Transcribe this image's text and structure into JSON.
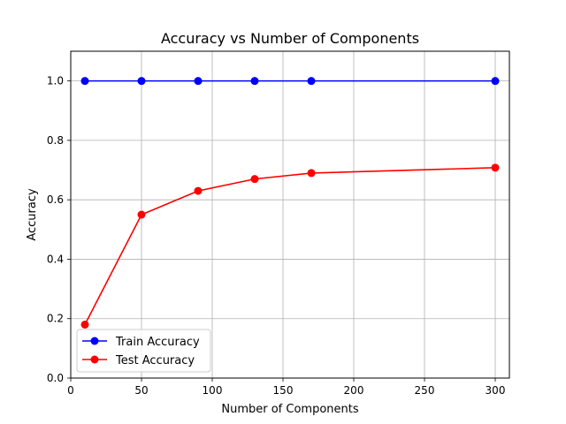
{
  "chart_data": {
    "type": "line",
    "title": "Accuracy vs Number of Components",
    "xlabel": "Number of Components",
    "ylabel": "Accuracy",
    "x": [
      10,
      50,
      90,
      130,
      170,
      300
    ],
    "xlim": [
      0,
      310
    ],
    "ylim": [
      0.0,
      1.1
    ],
    "xticks": [
      0,
      50,
      100,
      150,
      200,
      250,
      300
    ],
    "yticks": [
      0.0,
      0.2,
      0.4,
      0.6,
      0.8,
      1.0
    ],
    "xtick_labels": [
      "0",
      "50",
      "100",
      "150",
      "200",
      "250",
      "300"
    ],
    "ytick_labels": [
      "0.0",
      "0.2",
      "0.4",
      "0.6",
      "0.8",
      "1.0"
    ],
    "grid": true,
    "legend_position": "lower-left",
    "series": [
      {
        "name": "Train Accuracy",
        "color": "#0000ff",
        "marker": "circle",
        "values": [
          1.0,
          1.0,
          1.0,
          1.0,
          1.0,
          1.0
        ]
      },
      {
        "name": "Test Accuracy",
        "color": "#ff0000",
        "marker": "circle",
        "values": [
          0.18,
          0.55,
          0.63,
          0.67,
          0.69,
          0.708
        ]
      }
    ]
  }
}
